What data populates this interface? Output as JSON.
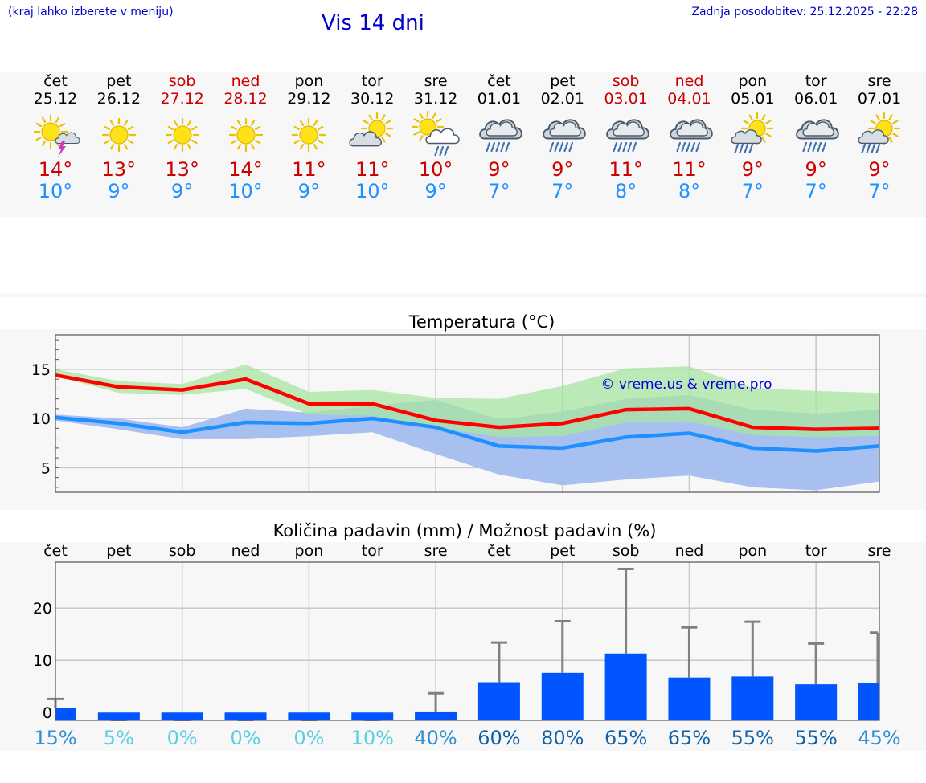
{
  "header": {
    "hint": "(kraj lahko izberete v meniju)",
    "title": "Vis 14 dni",
    "updated": "Zadnja posodobitev: 25.12.2025 - 22:28"
  },
  "colors": {
    "link_blue": "#0000cc",
    "weekday": "#000000",
    "weekend": "#cc0000",
    "tmax": "#cc0000",
    "tmin": "#1e90ff",
    "max_line": "#ff0000",
    "min_line": "#1e90ff",
    "max_band": "#a8e6a0",
    "min_band": "#a8c0f0",
    "overlap_band": "#7cc4a8",
    "precip_bar": "#0055ff",
    "error_bar": "#808080",
    "chance_light": "#58d0e0",
    "chance_mid": "#3090d0",
    "chance_dark": "#1060a8"
  },
  "days": [
    {
      "name": "čet",
      "date": "25.12",
      "weekend": false,
      "icon": "sun-thunder-icon",
      "tmax": "14°",
      "tmin": "10°"
    },
    {
      "name": "pet",
      "date": "26.12",
      "weekend": false,
      "icon": "sun-icon",
      "tmax": "13°",
      "tmin": "9°"
    },
    {
      "name": "sob",
      "date": "27.12",
      "weekend": true,
      "icon": "sun-icon",
      "tmax": "13°",
      "tmin": "9°"
    },
    {
      "name": "ned",
      "date": "28.12",
      "weekend": true,
      "icon": "sun-icon",
      "tmax": "14°",
      "tmin": "10°"
    },
    {
      "name": "pon",
      "date": "29.12",
      "weekend": false,
      "icon": "sun-icon",
      "tmax": "11°",
      "tmin": "9°"
    },
    {
      "name": "tor",
      "date": "30.12",
      "weekend": false,
      "icon": "partly-cloudy-icon",
      "tmax": "11°",
      "tmin": "10°"
    },
    {
      "name": "sre",
      "date": "31.12",
      "weekend": false,
      "icon": "sun-cloud-rain-icon",
      "tmax": "10°",
      "tmin": "9°"
    },
    {
      "name": "čet",
      "date": "01.01",
      "weekend": false,
      "icon": "cloud-rain-icon",
      "tmax": "9°",
      "tmin": "7°"
    },
    {
      "name": "pet",
      "date": "02.01",
      "weekend": false,
      "icon": "cloud-rain-icon",
      "tmax": "9°",
      "tmin": "7°"
    },
    {
      "name": "sob",
      "date": "03.01",
      "weekend": true,
      "icon": "cloud-rain-icon",
      "tmax": "11°",
      "tmin": "8°"
    },
    {
      "name": "ned",
      "date": "04.01",
      "weekend": true,
      "icon": "cloud-rain-icon",
      "tmax": "11°",
      "tmin": "8°"
    },
    {
      "name": "pon",
      "date": "05.01",
      "weekend": false,
      "icon": "sun-rain-icon",
      "tmax": "9°",
      "tmin": "7°"
    },
    {
      "name": "tor",
      "date": "06.01",
      "weekend": false,
      "icon": "cloud-rain-icon",
      "tmax": "9°",
      "tmin": "7°"
    },
    {
      "name": "sre",
      "date": "07.01",
      "weekend": false,
      "icon": "sun-rain-icon",
      "tmax": "9°",
      "tmin": "7°"
    }
  ],
  "chart_data": [
    {
      "type": "line",
      "title": "Temperatura (°C)",
      "watermark": "© vreme.us & vreme.pro",
      "x": [
        "25.12",
        "26.12",
        "27.12",
        "28.12",
        "29.12",
        "30.12",
        "31.12",
        "01.01",
        "02.01",
        "03.01",
        "04.01",
        "05.01",
        "06.01",
        "07.01"
      ],
      "ylim": [
        2.5,
        18.5
      ],
      "yticks": [
        5,
        10,
        15
      ],
      "yticks_labels": [
        "5",
        "10",
        "15"
      ],
      "grid": true,
      "series": [
        {
          "values": [
            14.4,
            13.2,
            12.9,
            14.0,
            11.5,
            11.5,
            9.8,
            9.1,
            9.5,
            10.9,
            11.0,
            9.1,
            8.9,
            9.0
          ]
        },
        {
          "values": [
            10.1,
            9.5,
            8.6,
            9.6,
            9.5,
            10.0,
            9.1,
            7.2,
            7.0,
            8.1,
            8.5,
            7.0,
            6.7,
            7.2
          ]
        }
      ],
      "max_band": [
        [
          14.3,
          15.0
        ],
        [
          12.6,
          13.8
        ],
        [
          12.4,
          13.5
        ],
        [
          13.0,
          15.5
        ],
        [
          10.4,
          12.7
        ],
        [
          10.3,
          12.9
        ],
        [
          9.1,
          12.1
        ],
        [
          8.1,
          12.0
        ],
        [
          8.2,
          13.3
        ],
        [
          9.6,
          15.1
        ],
        [
          9.7,
          15.3
        ],
        [
          8.3,
          13.1
        ],
        [
          8.1,
          12.8
        ],
        [
          8.2,
          12.6
        ]
      ],
      "min_band": [
        [
          9.8,
          10.4
        ],
        [
          8.9,
          10.0
        ],
        [
          7.9,
          9.1
        ],
        [
          7.9,
          11.0
        ],
        [
          8.2,
          10.6
        ],
        [
          8.6,
          11.3
        ],
        [
          6.4,
          11.9
        ],
        [
          4.3,
          9.9
        ],
        [
          3.2,
          10.7
        ],
        [
          3.8,
          12.0
        ],
        [
          4.2,
          12.4
        ],
        [
          3.0,
          10.9
        ],
        [
          2.7,
          10.5
        ],
        [
          3.6,
          10.9
        ]
      ]
    },
    {
      "type": "bar",
      "title": "Količina padavin (mm) / Možnost padavin (%)",
      "categories": [
        "čet",
        "pet",
        "sob",
        "ned",
        "pon",
        "tor",
        "sre",
        "čet",
        "pet",
        "sob",
        "ned",
        "pon",
        "tor",
        "sre"
      ],
      "values": [
        0.9,
        0,
        0,
        0,
        0,
        0,
        0.2,
        5.8,
        7.6,
        11.3,
        6.7,
        6.9,
        5.4,
        5.7
      ],
      "error_max": [
        2.6,
        0,
        0,
        0,
        0,
        0,
        3.7,
        13.4,
        17.5,
        27.5,
        16.3,
        17.4,
        13.2,
        15.3
      ],
      "ylim": [
        -1.5,
        28.8
      ],
      "yticks": [
        0,
        10,
        20
      ],
      "yticks_labels": [
        "0",
        "10",
        "20"
      ],
      "chance": [
        "15%",
        "5%",
        "0%",
        "0%",
        "0%",
        "10%",
        "40%",
        "60%",
        "80%",
        "65%",
        "65%",
        "55%",
        "55%",
        "45%"
      ],
      "grid": true
    }
  ]
}
